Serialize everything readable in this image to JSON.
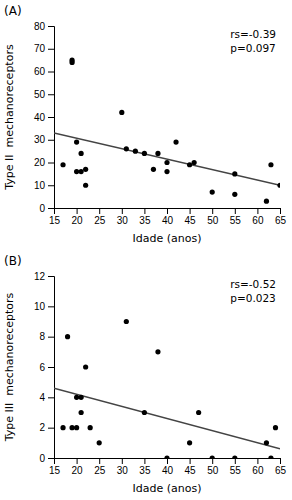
{
  "chart_data": [
    {
      "type": "scatter",
      "title": "(A)",
      "xlabel": "Idade (anos)",
      "ylabel": "Type II  mechanoreceptors",
      "annotations": [
        "rs=-0.39",
        "p=0.097"
      ],
      "xlim": [
        15,
        65
      ],
      "ylim": [
        0,
        80
      ],
      "xticks": [
        15,
        20,
        25,
        30,
        35,
        40,
        45,
        50,
        55,
        60,
        65
      ],
      "yticks": [
        0,
        10,
        20,
        30,
        40,
        50,
        60,
        70,
        80
      ],
      "grid": false,
      "series": [
        {
          "type": "scatter",
          "color": "#000000",
          "x": [
            17,
            19,
            19,
            20,
            20,
            21,
            21,
            22,
            22,
            30,
            31,
            33,
            35,
            37,
            38,
            40,
            40,
            42,
            45,
            46,
            50,
            55,
            55,
            62,
            63,
            65
          ],
          "values": [
            19,
            65,
            64,
            29,
            16,
            24,
            16,
            17,
            10,
            42,
            26,
            25,
            24,
            17,
            24,
            20,
            16,
            29,
            19,
            20,
            7,
            6,
            15,
            3,
            19,
            10
          ]
        },
        {
          "type": "line",
          "color": "#444444",
          "x": [
            15,
            65
          ],
          "values": [
            33,
            10
          ]
        }
      ]
    },
    {
      "type": "scatter",
      "title": "(B)",
      "xlabel": "Idade (anos)",
      "ylabel": "Type III  mechanoreceptors",
      "annotations": [
        "rs=-0.52",
        "p=0.023"
      ],
      "xlim": [
        15,
        65
      ],
      "ylim": [
        0,
        12
      ],
      "xticks": [
        15,
        20,
        25,
        30,
        35,
        40,
        45,
        50,
        55,
        60,
        65
      ],
      "yticks": [
        0,
        2,
        4,
        6,
        8,
        10,
        12
      ],
      "grid": false,
      "series": [
        {
          "type": "scatter",
          "color": "#000000",
          "x": [
            17,
            18,
            19,
            20,
            20,
            21,
            21,
            22,
            23,
            25,
            31,
            35,
            38,
            40,
            45,
            47,
            50,
            55,
            62,
            63,
            64
          ],
          "values": [
            2,
            8,
            2,
            4,
            2,
            4,
            3,
            6,
            2,
            1,
            9,
            3,
            7,
            0,
            1,
            3,
            0,
            0,
            1,
            0,
            2
          ]
        },
        {
          "type": "line",
          "color": "#444444",
          "x": [
            15,
            65
          ],
          "values": [
            4.6,
            0.6
          ]
        }
      ]
    }
  ]
}
